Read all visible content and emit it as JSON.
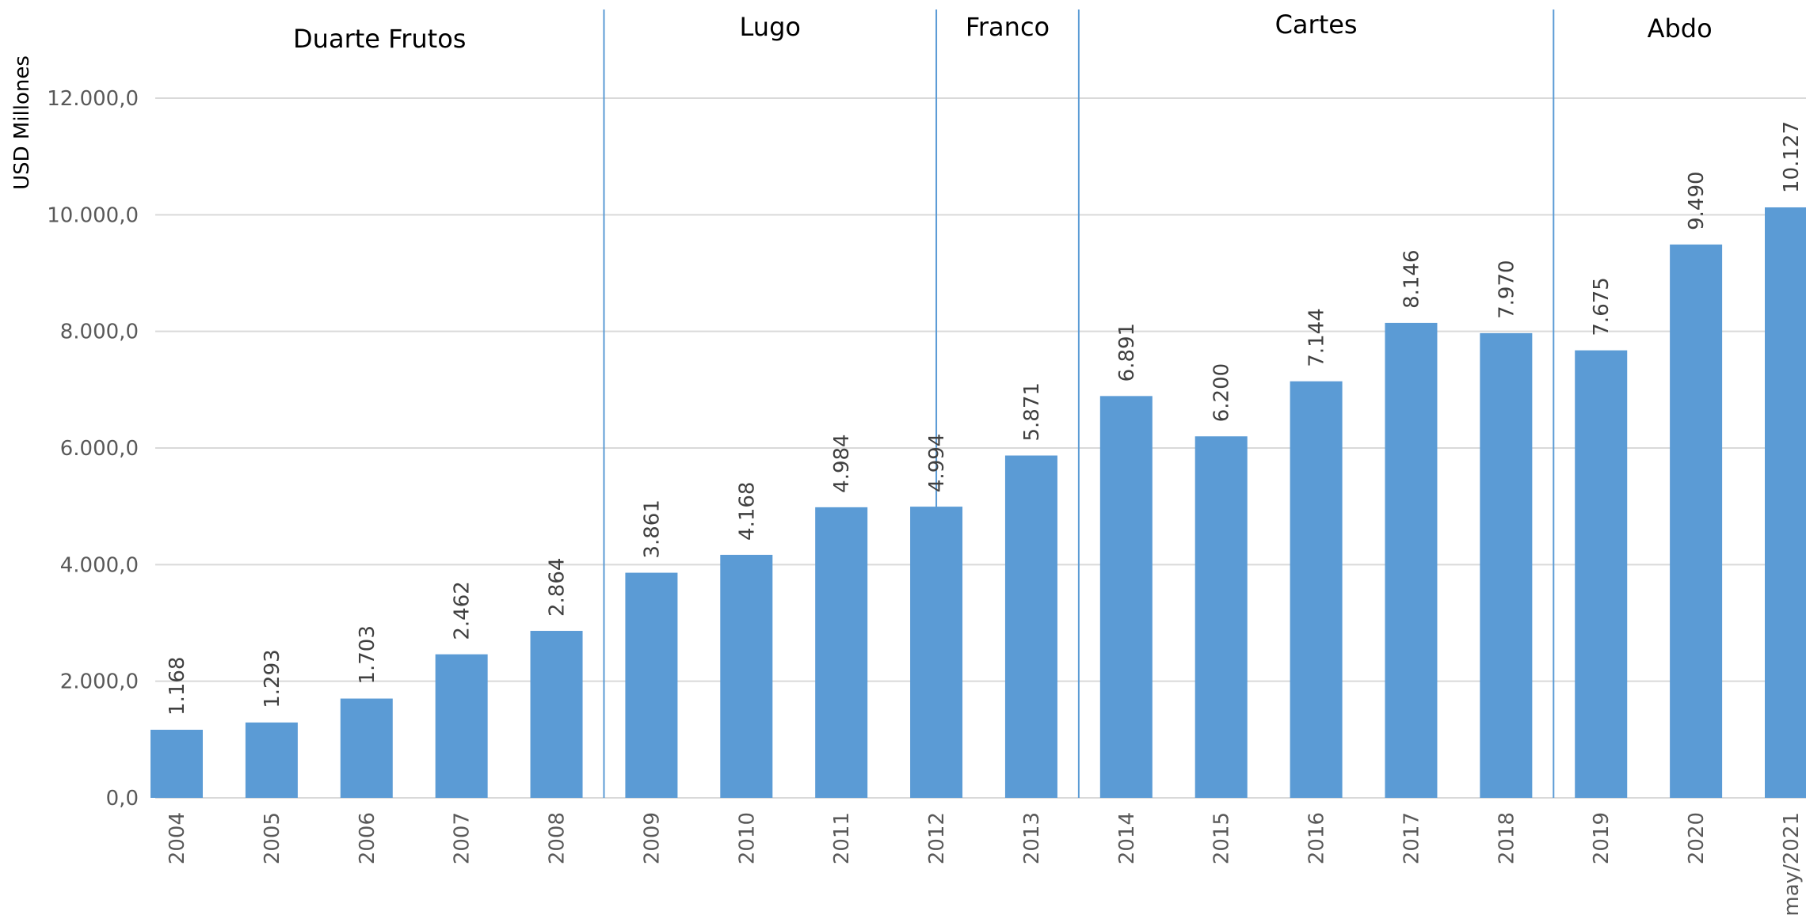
{
  "chart_data": {
    "type": "bar",
    "ylabel": "USD Millones",
    "xlabel": "",
    "ylim": [
      0,
      12000
    ],
    "yticks": [
      0,
      2000,
      4000,
      6000,
      8000,
      10000,
      12000
    ],
    "ytick_labels": [
      "0,0",
      "2.000,0",
      "4.000,0",
      "6.000,0",
      "8.000,0",
      "10.000,0",
      "12.000,0"
    ],
    "grid": true,
    "bar_color": "#5b9bd5",
    "categories": [
      "2004",
      "2005",
      "2006",
      "2007",
      "2008",
      "2009",
      "2010",
      "2011",
      "2012",
      "2013",
      "2014",
      "2015",
      "2016",
      "2017",
      "2018",
      "2019",
      "2020",
      "may/2021"
    ],
    "values": [
      1168,
      1293,
      1703,
      2462,
      2864,
      3861,
      4168,
      4984,
      4994,
      5871,
      6891,
      6200,
      7144,
      8146,
      7970,
      7675,
      9490,
      10127
    ],
    "data_labels": [
      "1.168",
      "1.293",
      "1.703",
      "2.462",
      "2.864",
      "3.861",
      "4.168",
      "4.984",
      "4.994",
      "5.871",
      "6.891",
      "6.200",
      "7.144",
      "8.146",
      "7.970",
      "7.675",
      "9.490",
      "10.127"
    ],
    "periods": [
      {
        "name": "Duarte Frutos",
        "from": "2004",
        "to": "2008"
      },
      {
        "name": "Lugo",
        "from": "2009",
        "to": "2012"
      },
      {
        "name": "Franco",
        "from": "2012",
        "to": "2013"
      },
      {
        "name": "Cartes",
        "from": "2014",
        "to": "2018"
      },
      {
        "name": "Abdo",
        "from": "2019",
        "to": "may/2021"
      }
    ]
  }
}
